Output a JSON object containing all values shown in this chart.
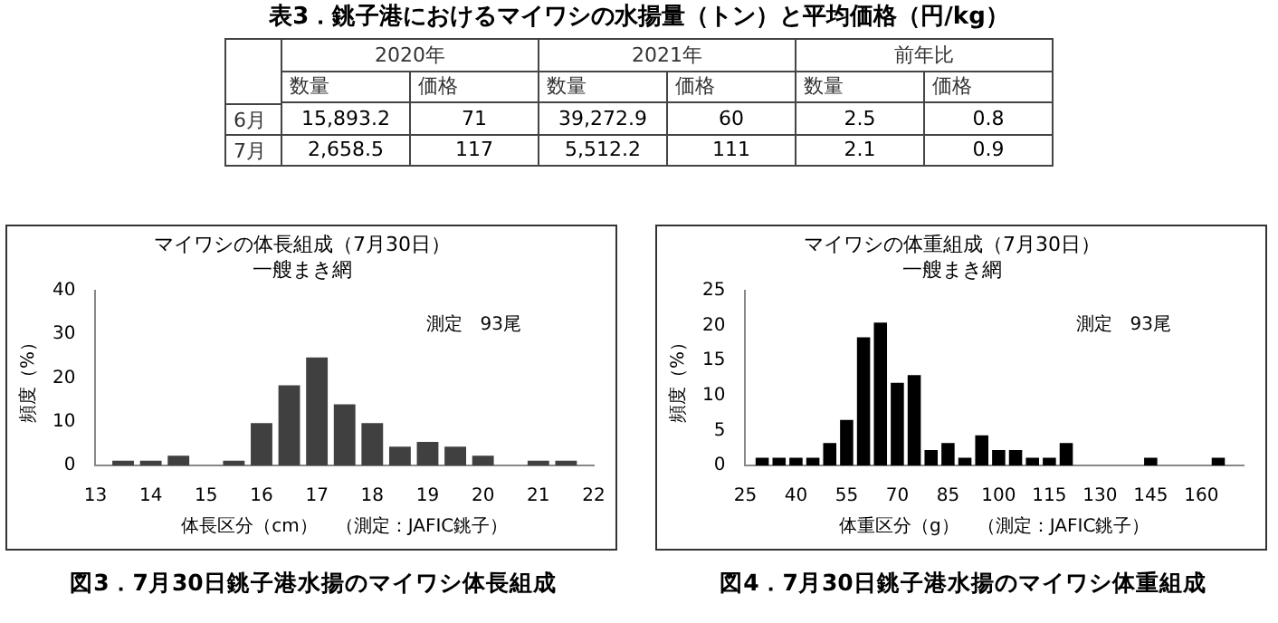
{
  "chart_data": [
    {
      "type": "heatmap",
      "title": "表3．銚子港におけるマイワシの水揚量（トン）と平均価格（円/kg）",
      "annotations": [
        "2020年",
        "2021年",
        "前年比"
      ],
      "categories": [
        "数量",
        "価格",
        "数量",
        "価格",
        "数量",
        "価格"
      ],
      "y_categories": [
        "6月",
        "7月"
      ],
      "cells": [
        [
          15893.2,
          71,
          39272.9,
          60,
          2.5,
          0.8
        ],
        [
          2658.5,
          117,
          5512.2,
          111,
          2.1,
          0.9
        ]
      ],
      "cell_labels": [
        [
          "15,893.2",
          "71",
          "39,272.9",
          "60",
          "2.5",
          "0.8"
        ],
        [
          "2,658.5",
          "117",
          "5,512.2",
          "111",
          "2.1",
          "0.9"
        ]
      ]
    },
    {
      "type": "histogram",
      "title": "マイワシの体長組成（7月30日）",
      "subtitle": "一艘まき網",
      "xlabel": "体長区分（cm）　（測定：JAFIC銚子）",
      "ylabel": "頻度（%）",
      "color": "#404040",
      "bins": [
        13.25,
        13.75,
        14.25,
        14.75,
        15.25,
        15.75,
        16.25,
        16.75,
        17.25,
        17.75,
        18.25,
        18.75,
        19.25,
        19.75,
        20.25,
        20.75,
        21.25,
        21.75
      ],
      "values": [
        1.1,
        1.1,
        2.2,
        0,
        1.1,
        9.7,
        18.3,
        24.7,
        14,
        9.7,
        4.3,
        5.4,
        4.3,
        2.2,
        0,
        1.1,
        1.1
      ],
      "xlim": [
        13,
        22
      ],
      "xticks": [
        13,
        14,
        15,
        16,
        17,
        18,
        19,
        20,
        21,
        22
      ],
      "ylim": [
        0,
        40
      ],
      "yticks": [
        0,
        10,
        20,
        30,
        40
      ],
      "annotations": [
        "測定　93尾",
        "図3．7月30日銚子港水揚のマイワシ体長組成"
      ]
    },
    {
      "type": "histogram",
      "title": "マイワシの体重組成（7月30日）",
      "subtitle": "一艘まき網",
      "xlabel": "体重区分（g）　（測定：JAFIC銚子）",
      "ylabel": "頻度（%）",
      "color": "#000000",
      "bins": [
        27.5,
        32.5,
        37.5,
        42.5,
        47.5,
        52.5,
        57.5,
        62.5,
        67.5,
        72.5,
        77.5,
        82.5,
        87.5,
        92.5,
        97.5,
        102.5,
        107.5,
        112.5,
        117.5,
        122.5,
        127.5,
        132.5,
        137.5,
        142.5,
        147.5,
        152.5,
        157.5,
        162.5,
        167.5
      ],
      "values": [
        1.1,
        1.1,
        1.1,
        1.1,
        3.2,
        6.5,
        18.3,
        20.4,
        11.8,
        12.9,
        2.2,
        3.2,
        1.1,
        4.3,
        2.2,
        2.2,
        1.1,
        1.1,
        3.2,
        0,
        0,
        0,
        0,
        1.1,
        0,
        0,
        0,
        1.1
      ],
      "xlim": [
        25,
        172.5
      ],
      "xticks": [
        25,
        40,
        55,
        70,
        85,
        100,
        115,
        130,
        145,
        160
      ],
      "ylim": [
        0,
        25
      ],
      "yticks": [
        0,
        5,
        10,
        15,
        20,
        25
      ],
      "annotations": [
        "測定　93尾",
        "図4．7月30日銚子港水揚のマイワシ体重組成"
      ]
    }
  ]
}
